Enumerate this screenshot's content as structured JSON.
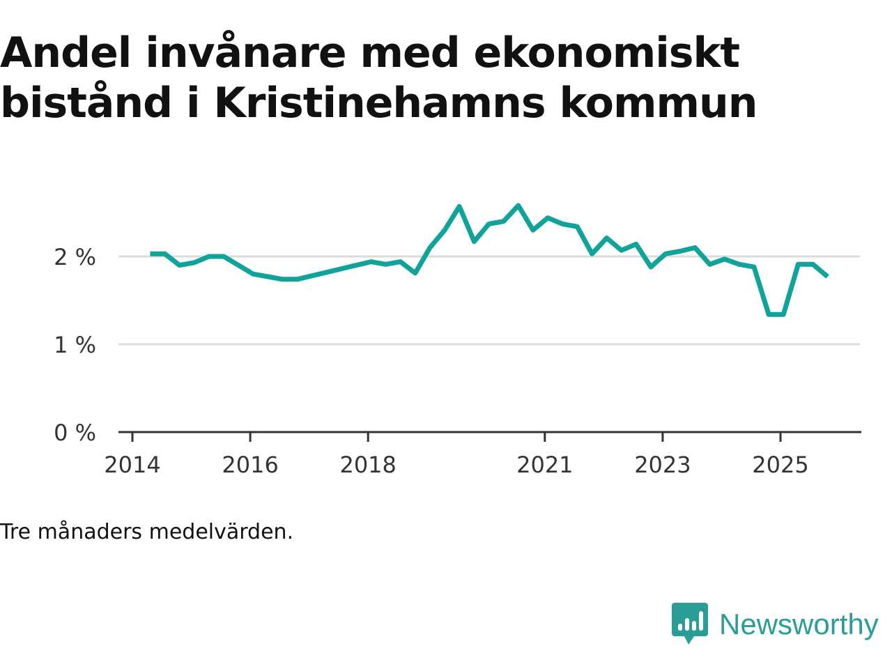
{
  "chart_data": {
    "type": "line",
    "title": "Andel invånare med ekonomiskt bistånd i Kristinehamns kommun",
    "xlabel": "",
    "ylabel": "",
    "ylim": [
      0,
      2.75
    ],
    "y_ticks": [
      0,
      1,
      2
    ],
    "y_tick_labels": [
      "0 %",
      "1 %",
      "2 %"
    ],
    "x_range": [
      2014,
      2026.3
    ],
    "x_ticks": [
      2014,
      2016,
      2018,
      2021,
      2023,
      2025
    ],
    "x_tick_labels": [
      "2014",
      "2016",
      "2018",
      "2021",
      "2023",
      "2025"
    ],
    "series": [
      {
        "name": "Andel med ekonomiskt bistånd",
        "color": "#0fa39a",
        "x": [
          2014.3,
          2014.55,
          2014.8,
          2015.05,
          2015.3,
          2015.55,
          2015.8,
          2016.05,
          2016.3,
          2016.55,
          2016.8,
          2017.05,
          2017.3,
          2017.55,
          2017.8,
          2018.05,
          2018.3,
          2018.55,
          2018.8,
          2019.05,
          2019.3,
          2019.55,
          2019.8,
          2020.05,
          2020.3,
          2020.55,
          2020.8,
          2021.05,
          2021.3,
          2021.55,
          2021.8,
          2022.05,
          2022.3,
          2022.55,
          2022.8,
          2023.05,
          2023.3,
          2023.55,
          2023.8,
          2024.05,
          2024.3,
          2024.55,
          2024.8,
          2025.05,
          2025.3,
          2025.55,
          2025.8
        ],
        "values": [
          2.03,
          2.03,
          1.9,
          1.93,
          2.0,
          2.0,
          1.9,
          1.8,
          1.77,
          1.74,
          1.74,
          1.78,
          1.82,
          1.86,
          1.9,
          1.94,
          1.91,
          1.94,
          1.81,
          2.1,
          2.3,
          2.57,
          2.17,
          2.37,
          2.4,
          2.58,
          2.3,
          2.44,
          2.37,
          2.34,
          2.03,
          2.21,
          2.07,
          2.14,
          1.88,
          2.03,
          2.06,
          2.1,
          1.91,
          1.97,
          1.91,
          1.88,
          1.34,
          1.34,
          1.91,
          1.91,
          1.77
        ]
      }
    ]
  },
  "footnote": "Tre månaders medelvärden.",
  "brand": {
    "name": "Newsworthy",
    "color": "#2a9d96"
  },
  "colors": {
    "gridline": "#dddddd",
    "axis": "#333333",
    "tick_label": "#333333"
  }
}
